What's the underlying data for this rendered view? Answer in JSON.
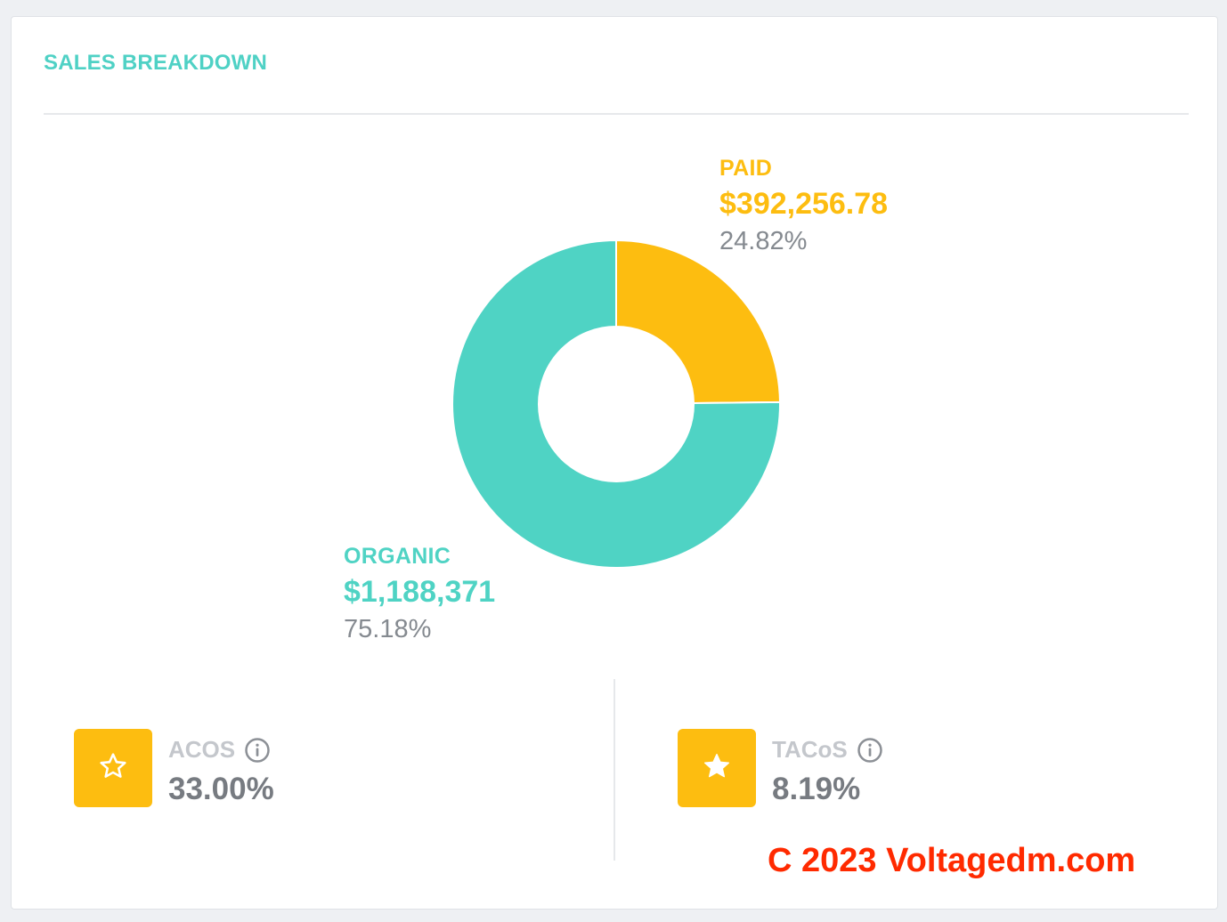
{
  "card": {
    "title": "SALES BREAKDOWN",
    "title_color": "#4fd1c5"
  },
  "chart_data": {
    "type": "pie",
    "donut": true,
    "categories": [
      "PAID",
      "ORGANIC"
    ],
    "values": [
      392256.78,
      1188371
    ],
    "value_labels": [
      "$392,256.78",
      "$1,188,371"
    ],
    "percentages": [
      "24.82%",
      "75.18%"
    ],
    "colors": [
      "#fdbd10",
      "#4fd3c4"
    ]
  },
  "labels": {
    "paid": {
      "name": "PAID",
      "amount": "$392,256.78",
      "pct": "24.82%",
      "color": "#fdbd10"
    },
    "organic": {
      "name": "ORGANIC",
      "amount": "$1,188,371",
      "pct": "75.18%",
      "color": "#4fd3c4"
    }
  },
  "metrics": {
    "acos": {
      "label": "ACOS",
      "value": "33.00%",
      "icon": "star-outline-icon",
      "info_icon": "info-icon"
    },
    "tacos": {
      "label": "TACoS",
      "value": "8.19%",
      "icon": "star-filled-icon",
      "info_icon": "info-icon"
    },
    "accent_color": "#fdbd10"
  },
  "watermark": {
    "text": "C 2023 Voltagedm.com",
    "color": "#ff2a00"
  }
}
